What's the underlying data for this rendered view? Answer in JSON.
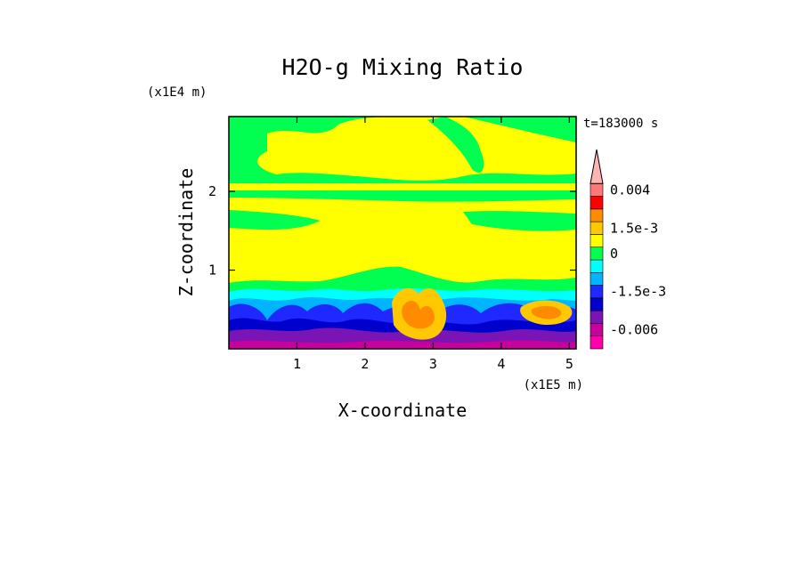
{
  "chart_data": {
    "type": "heatmap",
    "title": "H2O-g Mixing Ratio",
    "xlabel": "X-coordinate",
    "ylabel": "Z-coordinate",
    "x_unit": "(x1E5 m)",
    "y_unit": "(x1E4 m)",
    "time_label": "t=183000 s",
    "xlim": [
      0,
      5.1
    ],
    "ylim": [
      0,
      2.95
    ],
    "x_ticks": [
      {
        "value": 1,
        "label": "1"
      },
      {
        "value": 2,
        "label": "2"
      },
      {
        "value": 3,
        "label": "3"
      },
      {
        "value": 4,
        "label": "4"
      },
      {
        "value": 5,
        "label": "5"
      }
    ],
    "y_ticks": [
      {
        "value": 1,
        "label": "1"
      },
      {
        "value": 2,
        "label": "2"
      }
    ],
    "colorbar": {
      "levels": [
        {
          "color": "#ff00aa",
          "label": ""
        },
        {
          "color": "#c8009c",
          "label": "-0.006"
        },
        {
          "color": "#7a14b4",
          "label": ""
        },
        {
          "color": "#0000cc",
          "label": ""
        },
        {
          "color": "#1e28ff",
          "label": "-1.5e-3"
        },
        {
          "color": "#00b4ff",
          "label": ""
        },
        {
          "color": "#00ffff",
          "label": ""
        },
        {
          "color": "#00ff50",
          "label": "0"
        },
        {
          "color": "#ffff00",
          "label": ""
        },
        {
          "color": "#ffc800",
          "label": "1.5e-3"
        },
        {
          "color": "#ff8c00",
          "label": ""
        },
        {
          "color": "#ff0000",
          "label": ""
        },
        {
          "color": "#ff7878",
          "label": "0.004"
        },
        {
          "color": "#ffb4b4",
          "label": ""
        }
      ]
    }
  }
}
